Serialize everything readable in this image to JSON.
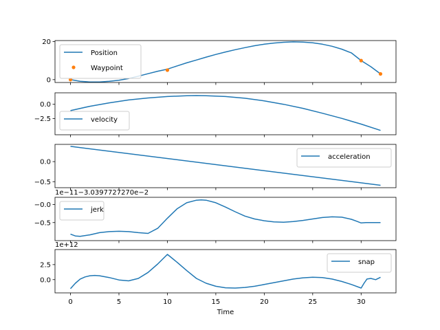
{
  "chart_data": [
    {
      "type": "line",
      "legend_position": "upper-left",
      "xlim": [
        -1.6,
        33.6
      ],
      "ylim": [
        -1.5,
        20.5
      ],
      "xticks": [
        0,
        5,
        10,
        15,
        20,
        25,
        30
      ],
      "yticks": [
        0,
        20
      ],
      "ytick_labels": [
        "0",
        "20"
      ],
      "series": [
        {
          "name": "Position",
          "style": "line",
          "color": "#1f77b4",
          "x": [
            0,
            1,
            2,
            3,
            4,
            5,
            6,
            7,
            8,
            9,
            10,
            11,
            12,
            13,
            14,
            15,
            16,
            17,
            18,
            19,
            20,
            21,
            22,
            23,
            24,
            25,
            26,
            27,
            28,
            29,
            30,
            31,
            32
          ],
          "y": [
            0,
            -0.9,
            -1.2,
            -1.2,
            -0.9,
            -0.3,
            0.6,
            1.8,
            3.1,
            4.4,
            5.5,
            7.2,
            8.8,
            10.3,
            11.8,
            13.2,
            14.5,
            15.7,
            16.8,
            17.8,
            18.6,
            19.2,
            19.6,
            19.8,
            19.7,
            19.3,
            18.6,
            17.5,
            16.0,
            14.0,
            10.0,
            6.8,
            3.0
          ]
        },
        {
          "name": "Waypoint",
          "style": "markers",
          "color": "#ff7f0e",
          "x": [
            0,
            10,
            30,
            32
          ],
          "y": [
            0,
            5,
            10,
            3
          ]
        }
      ]
    },
    {
      "type": "line",
      "legend_position": "lower-left",
      "xlim": [
        -1.6,
        33.6
      ],
      "ylim": [
        -5.3,
        2.0
      ],
      "xticks": [
        0,
        5,
        10,
        15,
        20,
        25,
        30
      ],
      "yticks": [
        0,
        -2.5
      ],
      "ytick_labels": [
        "0.0",
        "−2.5"
      ],
      "series": [
        {
          "name": "velocity",
          "style": "line",
          "color": "#1f77b4",
          "x": [
            0,
            2,
            4,
            6,
            8,
            10,
            12,
            13,
            14,
            16,
            18,
            20,
            22,
            24,
            26,
            28,
            30,
            32
          ],
          "y": [
            -1.1,
            -0.35,
            0.25,
            0.75,
            1.1,
            1.35,
            1.5,
            1.52,
            1.5,
            1.35,
            1.05,
            0.6,
            0.0,
            -0.7,
            -1.55,
            -2.45,
            -3.45,
            -4.55
          ]
        }
      ]
    },
    {
      "type": "line",
      "legend_position": "upper-right",
      "xlim": [
        -1.6,
        33.6
      ],
      "ylim": [
        -0.65,
        0.43
      ],
      "xticks": [
        0,
        5,
        10,
        15,
        20,
        25,
        30
      ],
      "yticks": [
        0,
        -0.5
      ],
      "ytick_labels": [
        "0.0",
        "−0.5"
      ],
      "series": [
        {
          "name": "acceleration",
          "style": "line",
          "color": "#1f77b4",
          "x": [
            0,
            32
          ],
          "y": [
            0.38,
            -0.59
          ]
        }
      ]
    },
    {
      "type": "line",
      "legend_position": "upper-left",
      "offset_text": "1e−11−3.0397727270e−2",
      "xlim": [
        -1.6,
        33.6
      ],
      "ylim": [
        -1.0,
        0.2
      ],
      "xticks": [
        0,
        5,
        10,
        15,
        20,
        25,
        30
      ],
      "yticks": [
        0,
        -0.5
      ],
      "ytick_labels": [
        "−0.0",
        "−0.5"
      ],
      "series": [
        {
          "name": "jerk",
          "style": "line",
          "color": "#1f77b4",
          "x": [
            0,
            0.5,
            1,
            2,
            3,
            4,
            5,
            6,
            7,
            8,
            9,
            10,
            11,
            12,
            13,
            13.5,
            14,
            15,
            16,
            17,
            18,
            19,
            20,
            21,
            22,
            23,
            24,
            25,
            26,
            27,
            28,
            29,
            29.5,
            30,
            30.5,
            31,
            32
          ],
          "y": [
            -0.82,
            -0.87,
            -0.88,
            -0.84,
            -0.78,
            -0.75,
            -0.74,
            -0.75,
            -0.78,
            -0.8,
            -0.66,
            -0.38,
            -0.12,
            0.05,
            0.12,
            0.13,
            0.12,
            0.05,
            -0.07,
            -0.2,
            -0.32,
            -0.4,
            -0.45,
            -0.48,
            -0.49,
            -0.47,
            -0.44,
            -0.4,
            -0.36,
            -0.34,
            -0.35,
            -0.41,
            -0.46,
            -0.51,
            -0.5,
            -0.5,
            -0.5
          ]
        }
      ]
    },
    {
      "type": "line",
      "legend_position": "upper-right",
      "offset_text": "1e+12",
      "xlabel": "Time",
      "xlim": [
        -1.6,
        33.6
      ],
      "ylim": [
        -2.2,
        5.0
      ],
      "xticks": [
        0,
        5,
        10,
        15,
        20,
        25,
        30
      ],
      "xtick_labels": [
        "0",
        "5",
        "10",
        "15",
        "20",
        "25",
        "30"
      ],
      "yticks": [
        2.5,
        0
      ],
      "ytick_labels": [
        "2.5",
        "0.0"
      ],
      "series": [
        {
          "name": "snap",
          "style": "line",
          "color": "#1f77b4",
          "x": [
            0,
            0.5,
            1,
            1.5,
            2,
            2.5,
            3,
            4,
            5,
            6,
            7,
            8,
            9,
            10,
            11,
            12,
            13,
            14,
            15,
            16,
            17,
            18,
            19,
            20,
            21,
            22,
            23,
            24,
            25,
            26,
            27,
            28,
            29,
            30,
            30.3,
            30.6,
            31,
            31.5,
            32
          ],
          "y": [
            -1.5,
            -0.6,
            0.1,
            0.45,
            0.65,
            0.7,
            0.65,
            0.35,
            -0.05,
            -0.2,
            0.2,
            1.2,
            2.6,
            4.2,
            2.9,
            1.5,
            0.2,
            -0.6,
            -1.1,
            -1.35,
            -1.4,
            -1.3,
            -1.1,
            -0.8,
            -0.5,
            -0.2,
            0.1,
            0.3,
            0.4,
            0.35,
            0.1,
            -0.3,
            -0.8,
            -1.4,
            -0.6,
            0.1,
            0.2,
            0.0,
            0.4
          ]
        }
      ]
    }
  ]
}
